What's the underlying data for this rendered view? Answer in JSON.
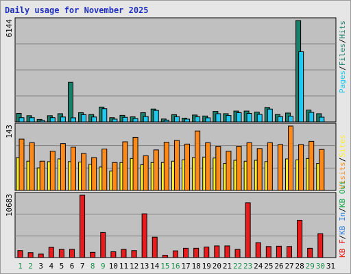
{
  "title": "Daily usage for November 2025",
  "colors": {
    "pages": "#1ec8f0",
    "files": "#1a7f6a",
    "hits": "#1a7f6a",
    "visits": "#ffee22",
    "sites": "#ff8a1a",
    "kb_in": "#2f7fe0",
    "kb_out": "#1aa84a",
    "kbf": "#e81c1c",
    "weekend_label": "#1a8f4a",
    "weekday_label": "#000000",
    "title": "#1f2fbf"
  },
  "chart_data": [
    {
      "type": "bar",
      "panel": "hits_files_pages",
      "ymax_label": "6144",
      "ylim": [
        0,
        6144
      ],
      "legend": [
        "Pages",
        "/",
        "Files",
        "/",
        "Hits"
      ],
      "categories": [
        "1",
        "2",
        "3",
        "4",
        "5",
        "6",
        "7",
        "8",
        "9",
        "10",
        "11",
        "12",
        "13",
        "14",
        "15",
        "16",
        "17",
        "18",
        "19",
        "20",
        "21",
        "22",
        "23",
        "24",
        "25",
        "26",
        "27",
        "28",
        "29",
        "30",
        "31"
      ],
      "series": [
        {
          "name": "Hits",
          "values": [
            520,
            380,
            150,
            380,
            500,
            2400,
            560,
            450,
            900,
            260,
            400,
            310,
            560,
            780,
            180,
            440,
            230,
            420,
            360,
            640,
            500,
            660,
            660,
            600,
            880,
            450,
            540,
            6144,
            720,
            500,
            0
          ]
        },
        {
          "name": "Files",
          "values": [
            520,
            380,
            150,
            380,
            500,
            2400,
            560,
            450,
            900,
            260,
            400,
            310,
            560,
            780,
            180,
            440,
            230,
            420,
            360,
            640,
            500,
            660,
            660,
            600,
            880,
            450,
            540,
            6144,
            720,
            500,
            0
          ]
        },
        {
          "name": "Pages",
          "values": [
            260,
            260,
            90,
            260,
            300,
            250,
            440,
            300,
            800,
            170,
            280,
            210,
            330,
            700,
            110,
            320,
            170,
            310,
            250,
            500,
            390,
            560,
            520,
            460,
            780,
            320,
            350,
            4260,
            580,
            290,
            0
          ]
        }
      ]
    },
    {
      "type": "bar",
      "panel": "visits_sites",
      "ymax_label": "143",
      "ylim": [
        0,
        143
      ],
      "legend": [
        "Visits",
        "/",
        "Sites"
      ],
      "categories": [
        "1",
        "2",
        "3",
        "4",
        "5",
        "6",
        "7",
        "8",
        "9",
        "10",
        "11",
        "12",
        "13",
        "14",
        "15",
        "16",
        "17",
        "18",
        "19",
        "20",
        "21",
        "22",
        "23",
        "24",
        "25",
        "26",
        "27",
        "28",
        "29",
        "30",
        "31"
      ],
      "series": [
        {
          "name": "Visits",
          "values": [
            73,
            65,
            50,
            64,
            70,
            64,
            63,
            58,
            52,
            43,
            62,
            71,
            57,
            62,
            62,
            65,
            68,
            73,
            74,
            72,
            60,
            67,
            65,
            67,
            64,
            0,
            70,
            68,
            71,
            60,
            0
          ]
        },
        {
          "name": "Sites",
          "values": [
            114,
            106,
            65,
            87,
            104,
            96,
            82,
            73,
            92,
            62,
            108,
            118,
            77,
            90,
            107,
            111,
            103,
            132,
            106,
            98,
            87,
            98,
            106,
            93,
            106,
            102,
            143,
            102,
            109,
            91,
            0
          ]
        }
      ]
    },
    {
      "type": "bar",
      "panel": "kbf_kbin_kbout",
      "ymax_label": "10683",
      "ylim": [
        0,
        10683
      ],
      "legend": [
        "KB F",
        "/",
        "KB In",
        "/",
        "KB Out"
      ],
      "categories": [
        "1",
        "2",
        "3",
        "4",
        "5",
        "6",
        "7",
        "8",
        "9",
        "10",
        "11",
        "12",
        "13",
        "14",
        "15",
        "16",
        "17",
        "18",
        "19",
        "20",
        "21",
        "22",
        "23",
        "24",
        "25",
        "26",
        "27",
        "28",
        "29",
        "30",
        "31"
      ],
      "series": [
        {
          "name": "KB F",
          "values": [
            1200,
            850,
            600,
            1750,
            1400,
            1400,
            10683,
            900,
            4300,
            1000,
            1400,
            1200,
            7500,
            3500,
            400,
            1150,
            1600,
            1600,
            1800,
            2000,
            2000,
            1400,
            9400,
            2550,
            1900,
            1950,
            1900,
            6400,
            1600,
            4100,
            0
          ]
        }
      ]
    }
  ],
  "day_labels": [
    "1",
    "2",
    "3",
    "4",
    "5",
    "6",
    "7",
    "8",
    "9",
    "10",
    "11",
    "12",
    "13",
    "14",
    "15",
    "16",
    "17",
    "18",
    "19",
    "20",
    "21",
    "22",
    "23",
    "24",
    "25",
    "26",
    "27",
    "28",
    "29",
    "30",
    "31"
  ],
  "weekend_days": [
    "1",
    "2",
    "8",
    "9",
    "15",
    "16",
    "22",
    "23",
    "29",
    "30"
  ]
}
